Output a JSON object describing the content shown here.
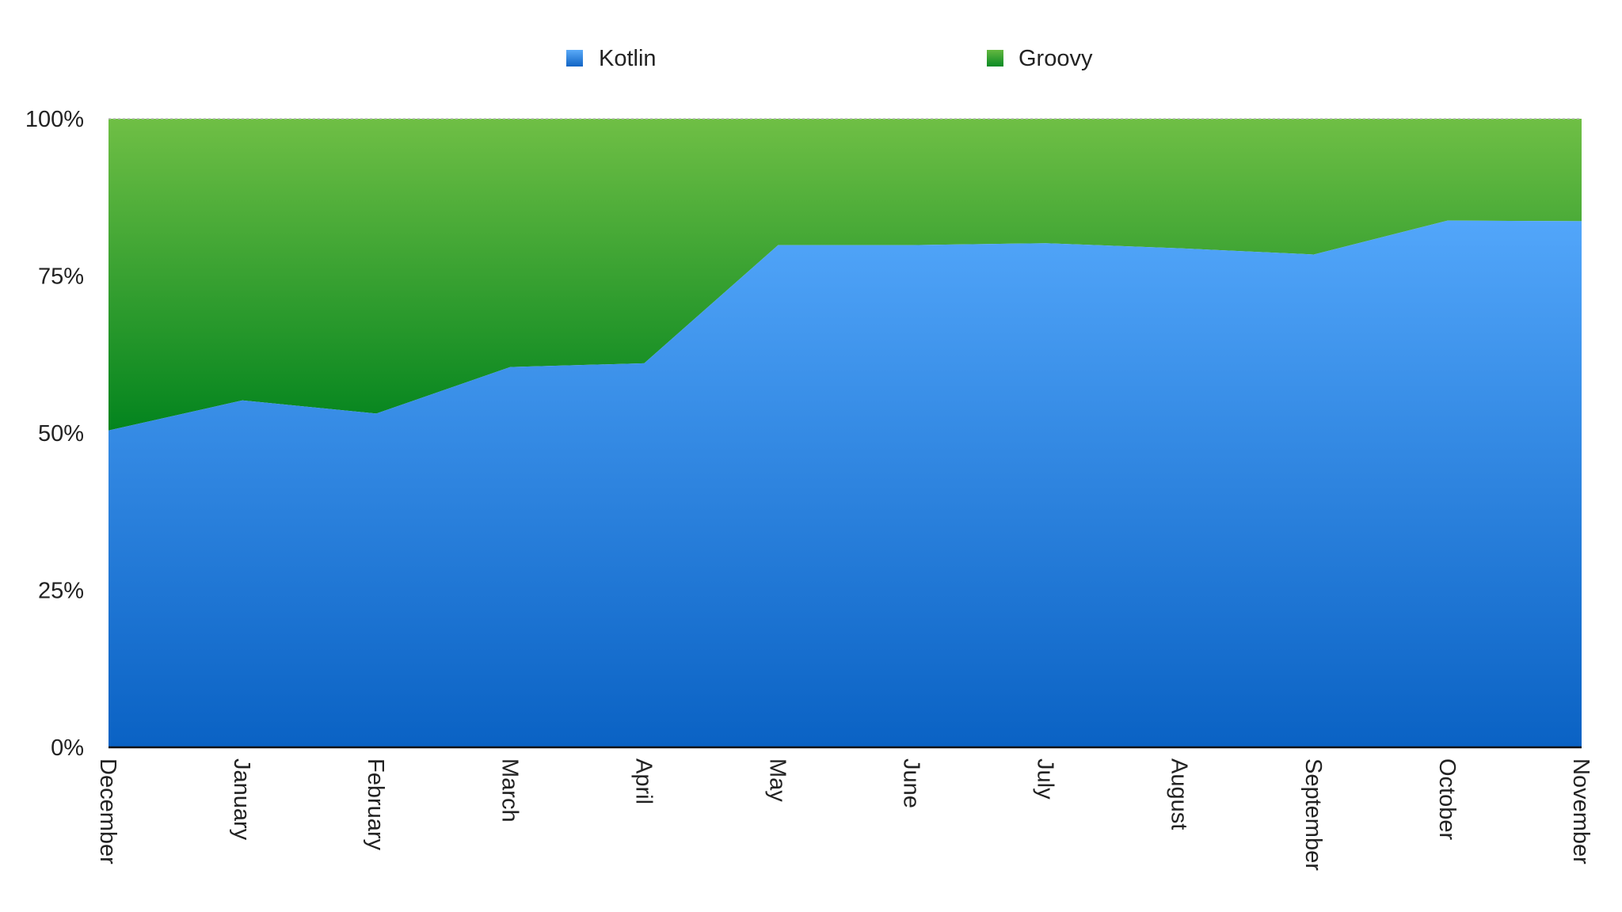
{
  "chart_data": {
    "type": "area",
    "stacked": true,
    "percent": true,
    "categories": [
      "December",
      "January",
      "February",
      "March",
      "April",
      "May",
      "June",
      "July",
      "August",
      "September",
      "October",
      "November"
    ],
    "series": [
      {
        "name": "Kotlin",
        "color": "#2f8ae6",
        "values": [
          50.4,
          55.2,
          53.1,
          60.5,
          61.1,
          79.9,
          79.9,
          80.2,
          79.4,
          78.4,
          83.8,
          83.7
        ]
      },
      {
        "name": "Groovy",
        "color": "#3aa63a",
        "values": [
          49.6,
          44.8,
          46.9,
          39.5,
          38.9,
          20.1,
          20.1,
          19.8,
          20.6,
          21.6,
          16.2,
          16.3
        ]
      }
    ],
    "y_ticks": [
      "0%",
      "25%",
      "50%",
      "75%",
      "100%"
    ],
    "ylim": [
      0,
      100
    ],
    "legend_position": "top",
    "grid": false,
    "title": "",
    "xlabel": "",
    "ylabel": ""
  }
}
